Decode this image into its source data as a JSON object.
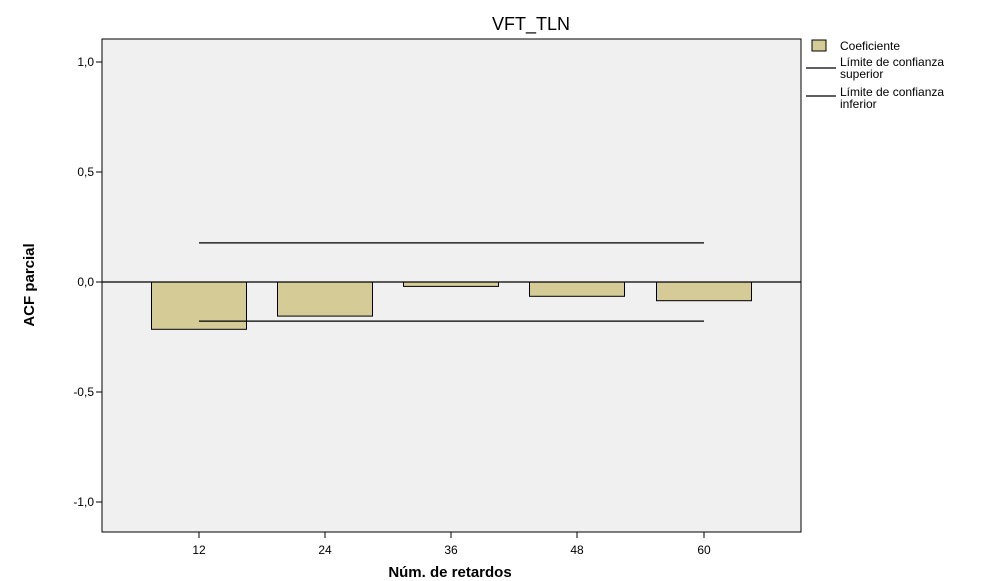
{
  "chart_data": {
    "type": "bar",
    "title": "VFT_TLN",
    "xlabel": "Núm. de retardos",
    "ylabel": "ACF parcial",
    "categories": [
      "12",
      "24",
      "36",
      "48",
      "60"
    ],
    "values": [
      -0.215,
      -0.155,
      -0.02,
      -0.065,
      -0.085
    ],
    "ylim": [
      -1.1,
      1.1
    ],
    "yticks": [
      1.0,
      0.5,
      0.0,
      -0.5,
      -1.0
    ],
    "ytick_labels": [
      "1,0",
      "0,5",
      "0,0",
      "-0,5",
      "-1,0"
    ],
    "confidence_upper": 0.178,
    "confidence_lower": -0.178,
    "grid": false,
    "legend_position": "right",
    "legend": {
      "coef": "Coeficiente",
      "upper": [
        "Límite de confianza",
        "superior"
      ],
      "lower": [
        "Límite de confianza",
        "inferior"
      ]
    },
    "colors": {
      "bar_fill": "#d4cb96",
      "bar_stroke": "#000000",
      "plot_bg": "#f0f0f0",
      "line": "#000000"
    }
  }
}
